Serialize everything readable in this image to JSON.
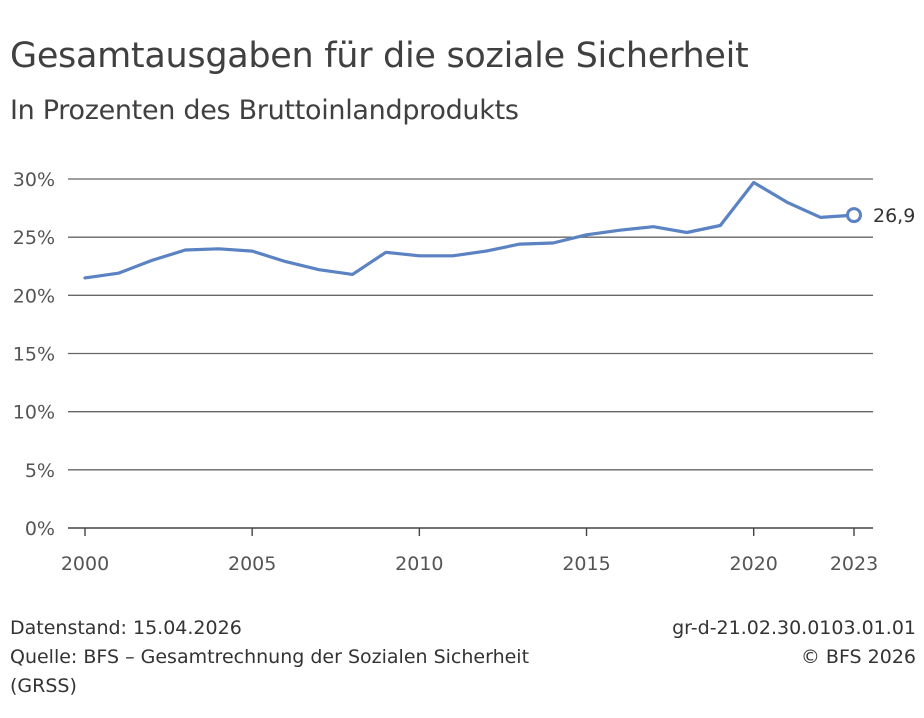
{
  "header": {
    "title": "Gesamtausgaben für die soziale Sicherheit",
    "subtitle": "In Prozenten des Bruttoinlandprodukts"
  },
  "footer": {
    "data_status": "Datenstand: 15.04.2026",
    "source_line1": "Quelle: BFS – Gesamtrechnung der Sozialen Sicherheit",
    "source_line2": "(GRSS)",
    "graphic_id": "gr-d-21.02.30.0103.01.01",
    "copyright": "© BFS 2026"
  },
  "colors": {
    "series": "#5b82c2",
    "grid": "#555555",
    "text": "#333333"
  },
  "chart_data": {
    "type": "line",
    "title": "Gesamtausgaben für die soziale Sicherheit",
    "subtitle": "In Prozenten des Bruttoinlandprodukts",
    "xlabel": "",
    "ylabel": "",
    "xlim": [
      2000,
      2023
    ],
    "ylim": [
      0,
      30
    ],
    "x_ticks": [
      2000,
      2005,
      2010,
      2015,
      2020,
      2023
    ],
    "y_ticks": [
      0,
      5,
      10,
      15,
      20,
      25,
      30
    ],
    "y_tick_labels": [
      "0%",
      "5%",
      "10%",
      "15%",
      "20%",
      "25%",
      "30%"
    ],
    "grid": true,
    "series": [
      {
        "x": [
          2000,
          2001,
          2002,
          2003,
          2004,
          2005,
          2006,
          2007,
          2008,
          2009,
          2010,
          2011,
          2012,
          2013,
          2014,
          2015,
          2016,
          2017,
          2018,
          2019,
          2020,
          2021,
          2022,
          2023
        ],
        "values": [
          21.5,
          21.9,
          23.0,
          23.9,
          24.0,
          23.8,
          22.9,
          22.2,
          21.8,
          23.7,
          23.4,
          23.4,
          23.8,
          24.4,
          24.5,
          25.2,
          25.6,
          25.9,
          25.4,
          26.0,
          29.7,
          28.0,
          26.7,
          26.9
        ]
      }
    ],
    "annotations": [
      {
        "x": 2023,
        "y": 26.9,
        "text": "26,9"
      }
    ]
  }
}
